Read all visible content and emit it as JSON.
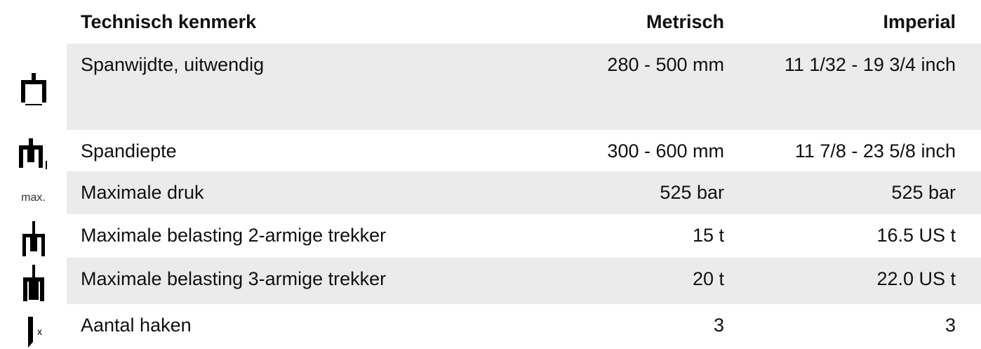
{
  "table": {
    "header": [
      "Technisch kenmerk",
      "Metrisch",
      "Imperial"
    ],
    "rows": [
      {
        "feature": "Spanwijdte, uitwendig",
        "metric": "280 - 500 mm",
        "imperial": "11 1/32 - 19 3/4 inch"
      },
      {
        "feature": "Spandiepte",
        "metric": "300 - 600 mm",
        "imperial": "11 7/8 - 23 5/8 inch"
      },
      {
        "icon_label": "max.",
        "feature": "Maximale druk",
        "metric": "525 bar",
        "imperial": "525 bar"
      },
      {
        "feature": "Maximale belasting 2-armige trekker",
        "metric": "15 t",
        "imperial": "16.5 US t"
      },
      {
        "feature": "Maximale belasting 3-armige trekker",
        "metric": "20 t",
        "imperial": "22.0 US t"
      },
      {
        "icon_label": "x",
        "feature": "Aantal haken",
        "metric": "3",
        "imperial": "3"
      }
    ]
  }
}
